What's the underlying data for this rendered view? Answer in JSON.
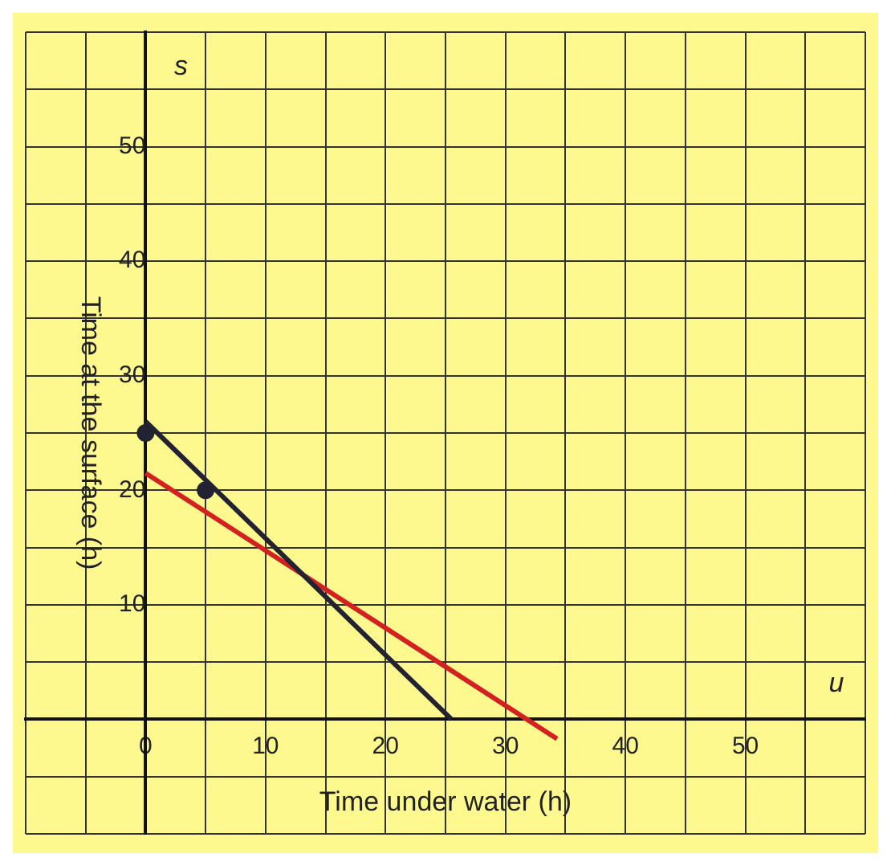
{
  "chart_data": {
    "type": "line",
    "xlabel": "Time under water (h)",
    "ylabel": "Time at the surface (h)",
    "annotations": [
      "s",
      "u"
    ],
    "series": [
      {
        "color": "#222233",
        "x": [
          0,
          25.5
        ],
        "values": [
          26,
          0
        ]
      },
      {
        "color": "#d42020",
        "x": [
          0,
          34.3
        ],
        "values": [
          21.5,
          -1.7
        ]
      },
      {
        "type": "scatter",
        "color": "#222233",
        "x": [
          0,
          5
        ],
        "values": [
          25,
          20
        ]
      }
    ],
    "xlim": [
      -10,
      60
    ],
    "ylim": [
      -10,
      60
    ],
    "xticks": [
      {
        "value": -10,
        "label": null
      },
      {
        "value": -5,
        "label": null
      },
      0,
      {
        "value": 5,
        "label": null
      },
      10,
      {
        "value": 15,
        "label": null
      },
      20,
      {
        "value": 25,
        "label": null
      },
      30,
      {
        "value": 35,
        "label": null
      },
      40,
      {
        "value": 45,
        "label": null
      },
      50,
      {
        "value": 55,
        "label": null
      },
      {
        "value": 60,
        "label": null
      }
    ],
    "yticks": [
      {
        "value": -10,
        "label": null
      },
      {
        "value": -5,
        "label": null
      },
      {
        "value": 0,
        "label": null
      },
      {
        "value": 5,
        "label": null
      },
      10,
      {
        "value": 15,
        "label": null
      },
      20,
      {
        "value": 25,
        "label": null
      },
      30,
      {
        "value": 35,
        "label": null
      },
      40,
      {
        "value": 45,
        "label": null
      },
      50,
      {
        "value": 55,
        "label": null
      },
      {
        "value": 60,
        "label": null
      }
    ],
    "grid": true,
    "legend": false
  }
}
